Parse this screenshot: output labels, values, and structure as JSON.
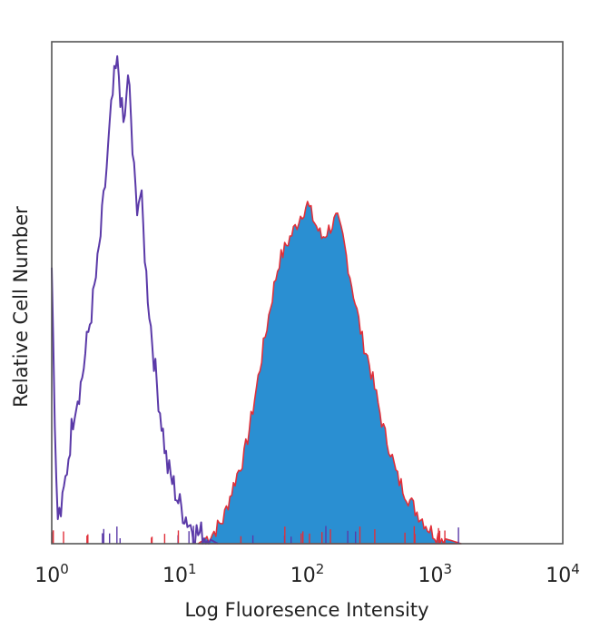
{
  "chart_data": {
    "type": "area",
    "title": "",
    "xlabel": "Log Fluoresence Intensity",
    "ylabel": "Relative Cell Number",
    "x_scale": "log",
    "xlim": [
      1,
      10000
    ],
    "ylim": [
      0,
      1
    ],
    "grid": false,
    "legend": "none",
    "x_ticks": [
      {
        "base": "10",
        "exp": "0",
        "value": 1
      },
      {
        "base": "10",
        "exp": "1",
        "value": 10
      },
      {
        "base": "10",
        "exp": "2",
        "value": 100
      },
      {
        "base": "10",
        "exp": "3",
        "value": 1000
      },
      {
        "base": "10",
        "exp": "4",
        "value": 10000
      }
    ],
    "series": [
      {
        "style": "outline",
        "color": "#5b3aa8",
        "x": [
          1.0,
          1.1,
          1.2,
          1.35,
          1.5,
          1.7,
          1.9,
          2.1,
          2.3,
          2.5,
          2.7,
          2.9,
          3.1,
          3.3,
          3.5,
          3.7,
          3.9,
          4.1,
          4.3,
          4.6,
          5.0,
          5.5,
          6.0,
          6.5,
          7.0,
          7.5,
          8.0,
          9.0,
          10.0,
          11.0,
          12.0,
          13.0,
          14.0,
          15.0,
          17.0,
          20.0
        ],
        "y": [
          0.57,
          0.05,
          0.07,
          0.18,
          0.28,
          0.33,
          0.42,
          0.5,
          0.58,
          0.68,
          0.78,
          0.88,
          0.96,
          0.99,
          0.9,
          0.85,
          0.96,
          0.92,
          0.8,
          0.7,
          0.72,
          0.55,
          0.44,
          0.35,
          0.28,
          0.22,
          0.16,
          0.12,
          0.08,
          0.06,
          0.04,
          0.03,
          0.02,
          0.02,
          0.01,
          0.0
        ]
      },
      {
        "style": "filled",
        "fill": "#2a8fd2",
        "edge": "#e0303a",
        "x": [
          14.0,
          18.0,
          22.0,
          25.0,
          28.0,
          32.0,
          36.0,
          40.0,
          45.0,
          50.0,
          55.0,
          60.0,
          70.0,
          80.0,
          90.0,
          100.0,
          115.0,
          130.0,
          150.0,
          170.0,
          190.0,
          210.0,
          240.0,
          270.0,
          300.0,
          350.0,
          400.0,
          450.0,
          500.0,
          600.0,
          700.0,
          800.0,
          900.0,
          1000.0,
          1200.0,
          1400.0,
          1600.0
        ],
        "y": [
          0.0,
          0.02,
          0.05,
          0.1,
          0.14,
          0.18,
          0.25,
          0.32,
          0.4,
          0.47,
          0.53,
          0.58,
          0.62,
          0.65,
          0.68,
          0.7,
          0.66,
          0.63,
          0.65,
          0.67,
          0.63,
          0.57,
          0.49,
          0.42,
          0.38,
          0.3,
          0.23,
          0.19,
          0.14,
          0.1,
          0.07,
          0.05,
          0.03,
          0.02,
          0.01,
          0.005,
          0.0
        ]
      }
    ]
  }
}
